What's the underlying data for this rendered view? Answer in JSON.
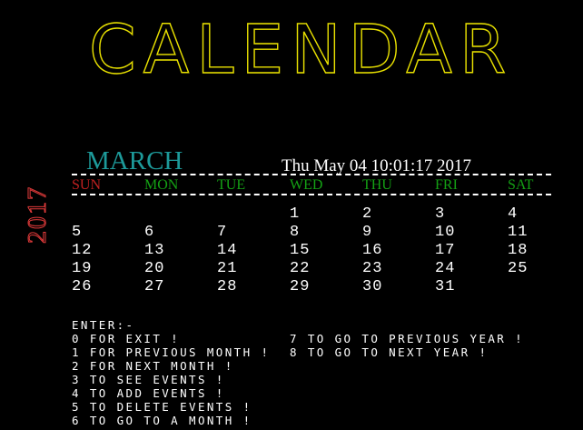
{
  "title": "CALENDAR",
  "year": "2017",
  "month": "MARCH",
  "datetime": "Thu May 04 10:01:17 2017",
  "weekdays": [
    "SUN",
    "MON",
    "TUE",
    "WED",
    "THU",
    "FRI",
    "SAT"
  ],
  "colors": {
    "title": "#e8e000",
    "year": "#e03a3a",
    "month": "#1d9a9a",
    "sunday": "#c02020",
    "weekday": "#14a014",
    "text": "#ffffff",
    "background": "#000000"
  },
  "weeks": [
    [
      "",
      "",
      "",
      "1",
      "2",
      "3",
      "4"
    ],
    [
      "5",
      "6",
      "7",
      "8",
      "9",
      "10",
      "11"
    ],
    [
      "12",
      "13",
      "14",
      "15",
      "16",
      "17",
      "18"
    ],
    [
      "19",
      "20",
      "21",
      "22",
      "23",
      "24",
      "25"
    ],
    [
      "26",
      "27",
      "28",
      "29",
      "30",
      "31",
      ""
    ]
  ],
  "menu": {
    "header": "ENTER:-",
    "left": [
      "0 FOR EXIT !",
      "1 FOR PREVIOUS MONTH !",
      "2 FOR NEXT MONTH !",
      "3 TO SEE EVENTS !",
      "4 TO ADD EVENTS !",
      "5 TO DELETE EVENTS !",
      "6 TO GO TO A MONTH !"
    ],
    "right": [
      "7 TO GO TO PREVIOUS YEAR !",
      "8 TO GO TO NEXT YEAR !"
    ]
  }
}
